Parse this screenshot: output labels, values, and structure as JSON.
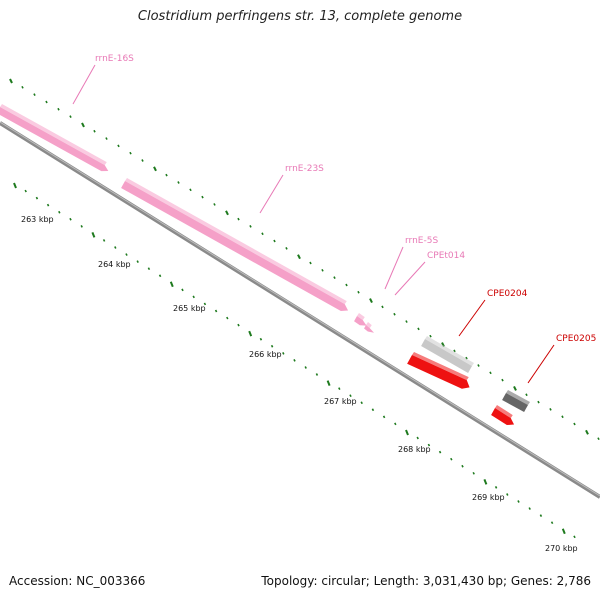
{
  "title": "Clostridium perfringens str. 13, complete genome",
  "footer": {
    "accession": "Accession: NC_003366",
    "topology": "Topology: circular; Length: 3,031,430 bp; Genes: 2,786"
  },
  "colors": {
    "backbone": "#8a8a8a",
    "tick": "#1e7a1e",
    "rrna": "#f5a0c8",
    "rrna_label": "#e879b6",
    "gene_red": "#ee1111",
    "gene_label_red": "#cc0000",
    "gene_gray": "#c8c8c8",
    "gene_dark": "#666666"
  },
  "scale_labels": [
    "263 kbp",
    "264 kbp",
    "265 kbp",
    "266 kbp",
    "267 kbp",
    "268 kbp",
    "269 kbp",
    "270 kbp"
  ],
  "features": [
    {
      "name": "rrnE-16S",
      "kind": "rrna"
    },
    {
      "name": "rrnE-23S",
      "kind": "rrna"
    },
    {
      "name": "rrnE-5S",
      "kind": "rrna"
    },
    {
      "name": "CPEt014",
      "kind": "rrna"
    },
    {
      "name": "CPE0204",
      "kind": "gene"
    },
    {
      "name": "CPE0205",
      "kind": "gene"
    }
  ]
}
